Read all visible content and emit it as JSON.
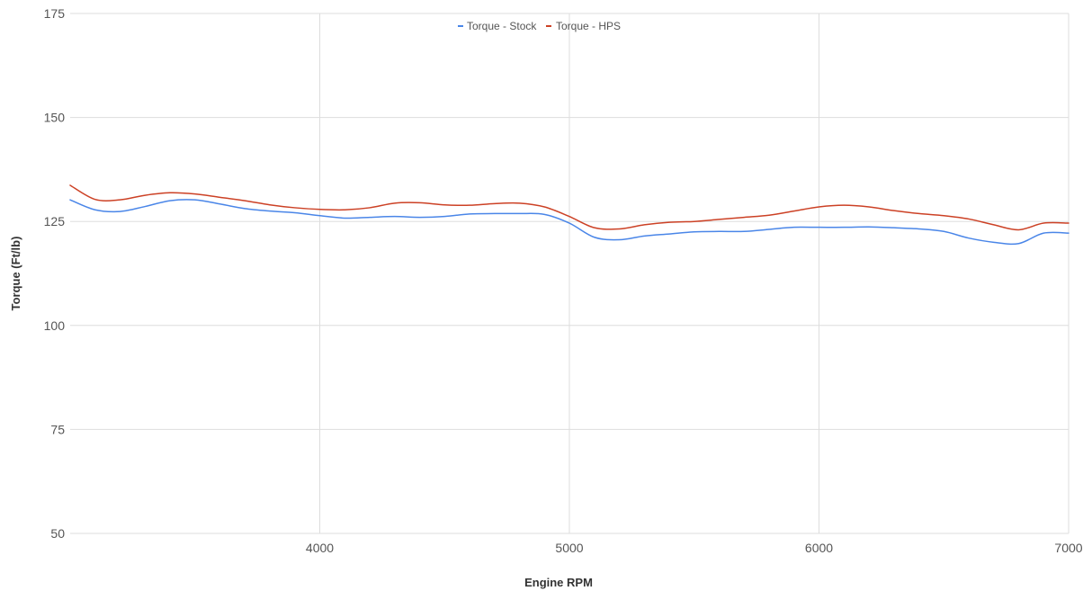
{
  "chart_data": {
    "type": "line",
    "title": "",
    "xlabel": "Engine RPM",
    "ylabel": "Torque (Ft/lb)",
    "xlim": [
      3000,
      7000
    ],
    "ylim": [
      50,
      175
    ],
    "x_ticks": [
      4000,
      5000,
      6000,
      7000
    ],
    "y_ticks": [
      50,
      75,
      100,
      125,
      150,
      175
    ],
    "grid": true,
    "legend_position": "top-center",
    "x": [
      3000,
      3100,
      3200,
      3300,
      3400,
      3500,
      3600,
      3700,
      3800,
      3900,
      4000,
      4100,
      4200,
      4300,
      4400,
      4500,
      4600,
      4700,
      4800,
      4900,
      5000,
      5100,
      5200,
      5300,
      5400,
      5500,
      5600,
      5700,
      5800,
      5900,
      6000,
      6100,
      6200,
      6300,
      6400,
      6500,
      6600,
      6700,
      6800,
      6900,
      7000
    ],
    "series": [
      {
        "name": "Torque - Stock",
        "color": "#4a86e8",
        "values": [
          130.2,
          127.8,
          127.4,
          128.6,
          130.0,
          130.2,
          129.2,
          128.1,
          127.5,
          127.1,
          126.4,
          125.8,
          126.0,
          126.2,
          126.0,
          126.2,
          126.8,
          126.9,
          126.9,
          126.7,
          124.6,
          121.2,
          120.6,
          121.5,
          122.0,
          122.5,
          122.6,
          122.6,
          123.1,
          123.6,
          123.6,
          123.6,
          123.7,
          123.5,
          123.2,
          122.6,
          121.0,
          120.0,
          119.7,
          122.2,
          122.2
        ]
      },
      {
        "name": "Torque - HPS",
        "color": "#cc4125",
        "values": [
          133.7,
          130.3,
          130.2,
          131.3,
          131.9,
          131.6,
          130.8,
          130.0,
          129.0,
          128.3,
          127.9,
          127.8,
          128.3,
          129.4,
          129.5,
          129.0,
          128.9,
          129.3,
          129.4,
          128.5,
          126.2,
          123.5,
          123.2,
          124.2,
          124.8,
          125.0,
          125.5,
          126.0,
          126.5,
          127.5,
          128.5,
          128.9,
          128.5,
          127.6,
          126.9,
          126.4,
          125.6,
          124.2,
          123.0,
          124.6,
          124.6
        ]
      }
    ]
  }
}
